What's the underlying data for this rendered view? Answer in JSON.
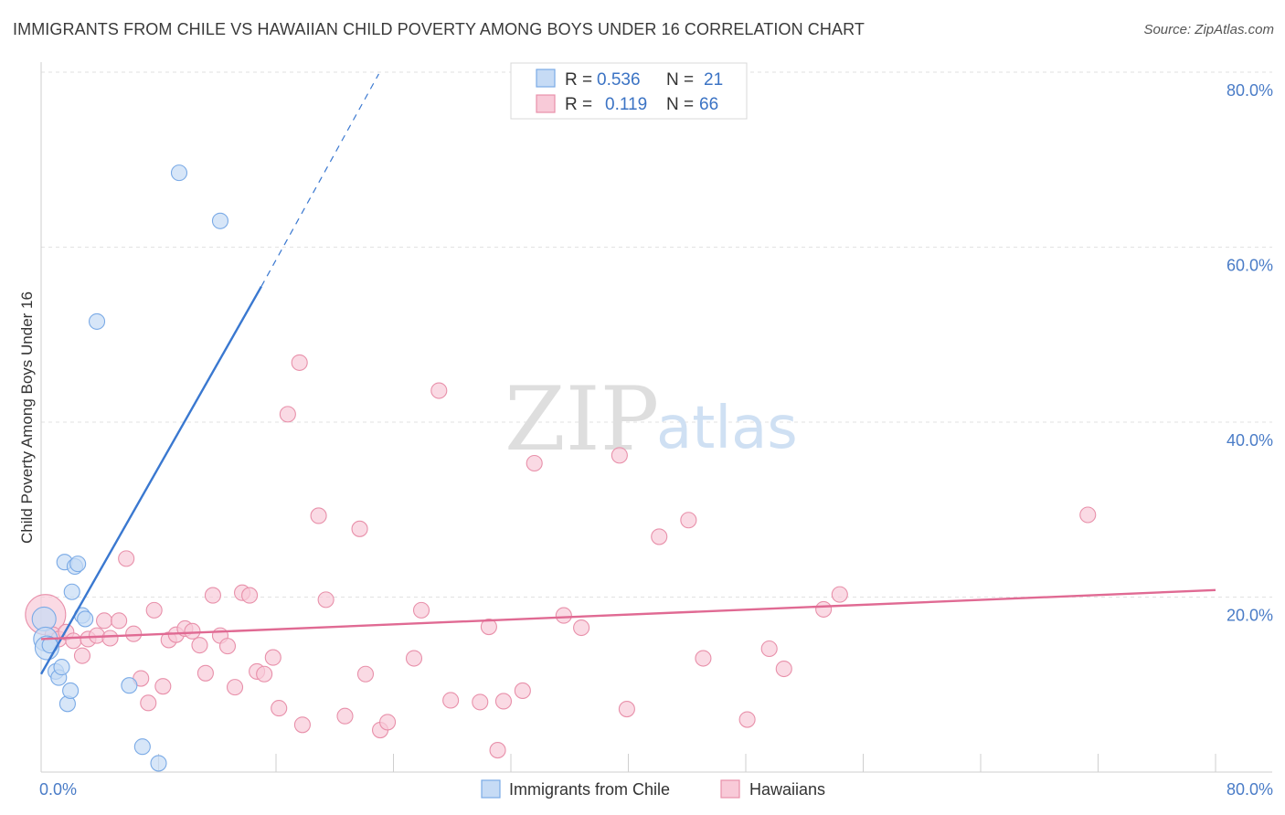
{
  "title": "IMMIGRANTS FROM CHILE VS HAWAIIAN CHILD POVERTY AMONG BOYS UNDER 16 CORRELATION CHART",
  "source": "Source: ZipAtlas.com",
  "watermark": {
    "zip": "ZIP",
    "atlas": "atlas"
  },
  "chart_data": {
    "type": "scatter",
    "ylabel": "Child Poverty Among Boys Under 16",
    "xlim": [
      0,
      80
    ],
    "ylim": [
      0,
      80
    ],
    "x_ticks": [
      {
        "value": 0,
        "label": "0.0%"
      },
      {
        "value": 80,
        "label": "80.0%"
      }
    ],
    "y_ticks": [
      {
        "value": 20,
        "label": "20.0%"
      },
      {
        "value": 40,
        "label": "40.0%"
      },
      {
        "value": 60,
        "label": "60.0%"
      },
      {
        "value": 80,
        "label": "80.0%"
      }
    ],
    "legend": {
      "position": "top-center",
      "entries": [
        {
          "r_label": "R =",
          "r_value": "0.536",
          "n_label": "N =",
          "n_value": "21"
        },
        {
          "r_label": "R =",
          "r_value": "0.119",
          "n_label": "N =",
          "n_value": "66"
        }
      ]
    },
    "series": [
      {
        "name": "Immigrants from Chile",
        "color": "#7aaae6",
        "fill": "#c6dbf5",
        "trend": {
          "solid": [
            [
              0,
              11.2
            ],
            [
              15,
              55.5
            ]
          ],
          "dashed": [
            [
              15,
              55.5
            ],
            [
              23,
              79.8
            ]
          ],
          "color": "#3a78d0"
        },
        "points": [
          [
            0.2,
            17.5
          ],
          [
            0.3,
            15.2
          ],
          [
            0.4,
            14.2
          ],
          [
            0.6,
            14.5
          ],
          [
            1.0,
            11.5
          ],
          [
            1.2,
            10.8
          ],
          [
            1.4,
            12.0
          ],
          [
            1.6,
            24.0
          ],
          [
            1.8,
            7.8
          ],
          [
            2.0,
            9.3
          ],
          [
            2.1,
            20.6
          ],
          [
            2.3,
            23.5
          ],
          [
            2.5,
            23.8
          ],
          [
            2.8,
            17.9
          ],
          [
            3.0,
            17.5
          ],
          [
            3.8,
            51.5
          ],
          [
            6.0,
            9.9
          ],
          [
            6.9,
            2.9
          ],
          [
            8.0,
            1.0
          ],
          [
            9.4,
            68.5
          ],
          [
            12.2,
            63.0
          ]
        ]
      },
      {
        "name": "Hawaiians",
        "color": "#e890aa",
        "fill": "#f8cad8",
        "trend": {
          "solid": [
            [
              0,
              15.2
            ],
            [
              80,
              20.8
            ]
          ],
          "color": "#e06a93"
        },
        "points": [
          [
            0.3,
            18.0
          ],
          [
            0.8,
            15.7
          ],
          [
            1.2,
            15.2
          ],
          [
            1.7,
            16.0
          ],
          [
            2.2,
            15.0
          ],
          [
            2.8,
            13.3
          ],
          [
            3.2,
            15.2
          ],
          [
            3.8,
            15.6
          ],
          [
            4.3,
            17.3
          ],
          [
            4.7,
            15.3
          ],
          [
            5.3,
            17.3
          ],
          [
            5.8,
            24.4
          ],
          [
            6.3,
            15.8
          ],
          [
            6.8,
            10.7
          ],
          [
            7.3,
            7.9
          ],
          [
            7.7,
            18.5
          ],
          [
            8.3,
            9.8
          ],
          [
            8.7,
            15.1
          ],
          [
            9.2,
            15.7
          ],
          [
            9.8,
            16.4
          ],
          [
            10.3,
            16.1
          ],
          [
            10.8,
            14.5
          ],
          [
            11.2,
            11.3
          ],
          [
            11.7,
            20.2
          ],
          [
            12.2,
            15.6
          ],
          [
            12.7,
            14.4
          ],
          [
            13.2,
            9.7
          ],
          [
            13.7,
            20.5
          ],
          [
            14.2,
            20.2
          ],
          [
            14.7,
            11.5
          ],
          [
            15.2,
            11.2
          ],
          [
            15.8,
            13.1
          ],
          [
            16.2,
            7.3
          ],
          [
            16.8,
            40.9
          ],
          [
            17.8,
            5.4
          ],
          [
            17.6,
            46.8
          ],
          [
            18.9,
            29.3
          ],
          [
            19.4,
            19.7
          ],
          [
            20.7,
            6.4
          ],
          [
            21.7,
            27.8
          ],
          [
            22.1,
            11.2
          ],
          [
            23.1,
            4.8
          ],
          [
            23.6,
            5.7
          ],
          [
            25.4,
            13.0
          ],
          [
            25.9,
            18.5
          ],
          [
            27.1,
            43.6
          ],
          [
            27.9,
            8.2
          ],
          [
            29.9,
            8.0
          ],
          [
            30.5,
            16.6
          ],
          [
            31.1,
            2.5
          ],
          [
            31.5,
            8.1
          ],
          [
            32.8,
            9.3
          ],
          [
            33.6,
            35.3
          ],
          [
            35.6,
            17.9
          ],
          [
            36.8,
            16.5
          ],
          [
            39.4,
            36.2
          ],
          [
            39.9,
            7.2
          ],
          [
            42.1,
            26.9
          ],
          [
            44.1,
            28.8
          ],
          [
            45.1,
            13.0
          ],
          [
            48.1,
            6.0
          ],
          [
            49.6,
            14.1
          ],
          [
            50.6,
            11.8
          ],
          [
            53.3,
            18.6
          ],
          [
            54.4,
            20.3
          ],
          [
            71.3,
            29.4
          ]
        ]
      }
    ]
  }
}
